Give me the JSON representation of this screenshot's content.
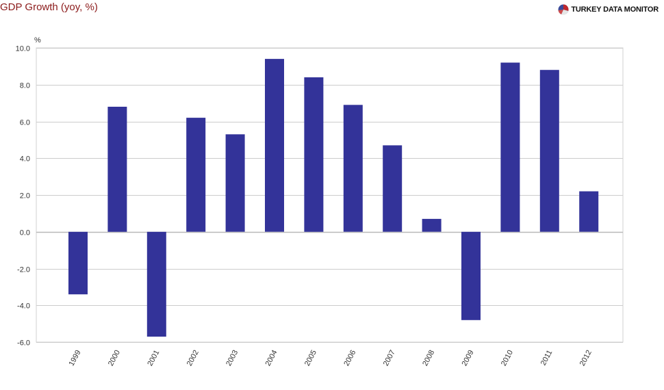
{
  "header": {
    "title": "GDP Growth (yoy, %)",
    "logo_text": "TURKEY DATA MONITOR"
  },
  "colors": {
    "bar": "#333399",
    "title": "#8b1a1a",
    "grid": "#cccccc"
  },
  "chart_data": {
    "type": "bar",
    "title": "GDP Growth (yoy, %)",
    "ylabel": "%",
    "xlabel": "",
    "ylim": [
      -6,
      10
    ],
    "yticks": [
      "10.0",
      "8.0",
      "6.0",
      "4.0",
      "2.0",
      "0.0",
      "-2.0",
      "-4.0",
      "-6.0"
    ],
    "ytick_values": [
      10,
      8,
      6,
      4,
      2,
      0,
      -2,
      -4,
      -6
    ],
    "categories": [
      "1999",
      "2000",
      "2001",
      "2002",
      "2003",
      "2004",
      "2005",
      "2006",
      "2007",
      "2008",
      "2009",
      "2010",
      "2011",
      "2012"
    ],
    "values": [
      -3.4,
      6.8,
      -5.7,
      6.2,
      5.3,
      9.4,
      8.4,
      6.9,
      4.7,
      0.7,
      -4.8,
      9.2,
      8.8,
      2.2
    ],
    "grid": true,
    "legend": "none"
  }
}
